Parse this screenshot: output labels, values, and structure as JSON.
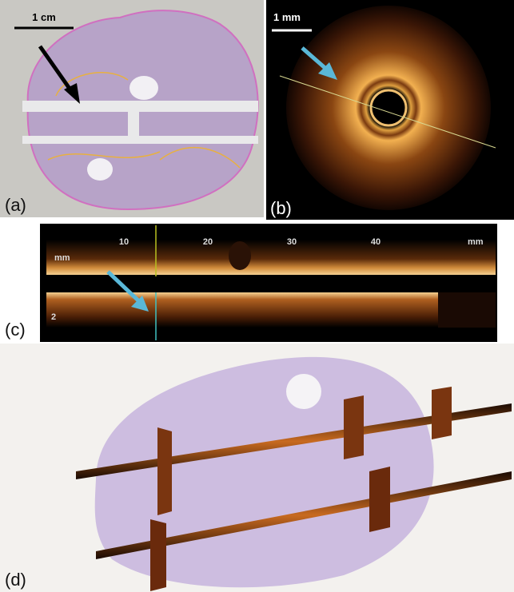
{
  "panels": [
    {
      "label": "(a)",
      "scale_bar": "1 cm"
    },
    {
      "label": "(b)",
      "scale_bar": "1 mm"
    },
    {
      "label": "(c)",
      "axis_ticks": [
        "10",
        "20",
        "30",
        "40"
      ],
      "axis_unit_left": "mm",
      "axis_unit_right": "mm",
      "depth_tick": "2"
    },
    {
      "label": "(d)"
    }
  ]
}
